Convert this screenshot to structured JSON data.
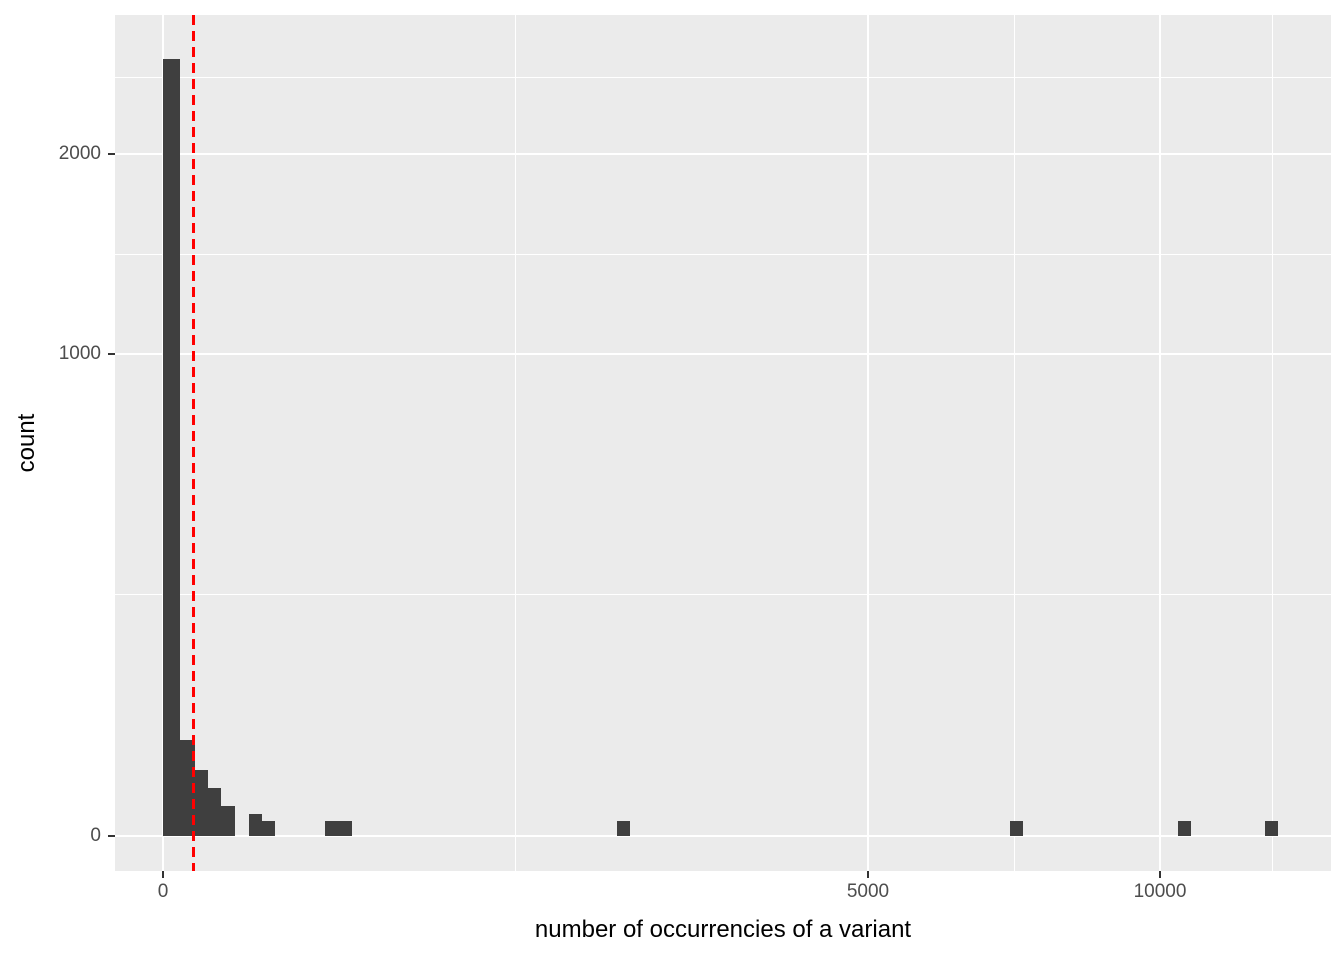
{
  "style": {
    "figure_background": "#FFFFFF",
    "panel_background": "#EBEBEB",
    "gridline_color": "#FFFFFF",
    "bar_color": "#3F3F3F",
    "vline_color": "#FF0000",
    "tick_label_color": "#4D4D4D",
    "axis_title_color": "#000000"
  },
  "chart_data": {
    "type": "bar",
    "subtype": "histogram",
    "title": "",
    "xlabel": "number of occurrencies of a variant",
    "ylabel": "count",
    "x_scale": "sqrt",
    "y_scale": "sqrt",
    "grid": true,
    "legend": false,
    "xlim": [
      0,
      13700
    ],
    "ylim": [
      0,
      2900
    ],
    "x_ticks": [
      {
        "value": 0,
        "label": "0"
      },
      {
        "value": 5000,
        "label": "5000"
      },
      {
        "value": 10000,
        "label": "10000"
      }
    ],
    "y_ticks": [
      {
        "value": 0,
        "label": "0"
      },
      {
        "value": 1000,
        "label": "1000"
      },
      {
        "value": 2000,
        "label": "2000"
      }
    ],
    "x_minor_gridlines": [
      1250,
      7286,
      12374
    ],
    "y_minor_gridlines": [
      250,
      1457,
      2475
    ],
    "bars": [
      {
        "x0": 0,
        "x1": 3,
        "count": 2600
      },
      {
        "x0": 3,
        "x1": 10,
        "count": 40
      },
      {
        "x0": 10,
        "x1": 20,
        "count": 19
      },
      {
        "x0": 20,
        "x1": 34,
        "count": 10
      },
      {
        "x0": 34,
        "x1": 52,
        "count": 4
      },
      {
        "x0": 74,
        "x1": 99,
        "count": 2
      },
      {
        "x0": 99,
        "x1": 127,
        "count": 1
      },
      {
        "x0": 264,
        "x1": 359,
        "count": 1
      },
      {
        "x0": 2074,
        "x1": 2194,
        "count": 1
      },
      {
        "x0": 7218,
        "x1": 7441,
        "count": 1
      },
      {
        "x0": 10363,
        "x1": 10630,
        "count": 1
      },
      {
        "x0": 12210,
        "x1": 12499,
        "count": 1
      }
    ],
    "vline": {
      "x": 9.5,
      "style": "dashed",
      "color": "#FF0000"
    }
  }
}
